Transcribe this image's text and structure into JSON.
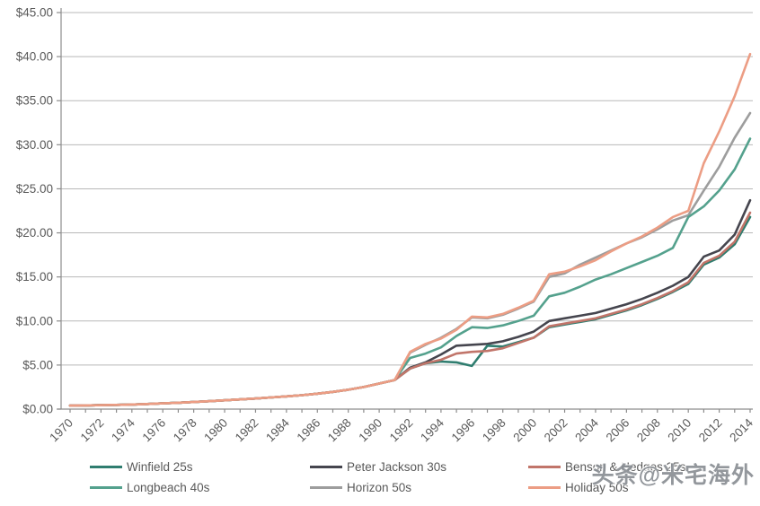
{
  "watermark": "头条@米宅海外",
  "chart_data": {
    "type": "line",
    "title": "",
    "xlabel": "",
    "ylabel": "",
    "grid": "horizontal",
    "legend_position": "bottom",
    "ylim": [
      0,
      45
    ],
    "ytick_step": 5,
    "y_tick_labels": [
      "$0.00",
      "$5.00",
      "$10.00",
      "$15.00",
      "$20.00",
      "$25.00",
      "$30.00",
      "$35.00",
      "$40.00",
      "$45.00"
    ],
    "x": [
      1970,
      1971,
      1972,
      1973,
      1974,
      1975,
      1976,
      1977,
      1978,
      1979,
      1980,
      1981,
      1982,
      1983,
      1984,
      1985,
      1986,
      1987,
      1988,
      1989,
      1990,
      1991,
      1992,
      1993,
      1994,
      1995,
      1996,
      1997,
      1998,
      1999,
      2000,
      2001,
      2002,
      2003,
      2004,
      2005,
      2006,
      2007,
      2008,
      2009,
      2010,
      2011,
      2012,
      2013,
      2014
    ],
    "x_tick_labels": [
      "1970",
      "1972",
      "1974",
      "1976",
      "1978",
      "1980",
      "1982",
      "1984",
      "1986",
      "1988",
      "1990",
      "1992",
      "1994",
      "1996",
      "1998",
      "2000",
      "2002",
      "2004",
      "2006",
      "2008",
      "2010",
      "2012",
      "2014"
    ],
    "axis_color": "#8c8c8c",
    "gridline_color": "#b8b8b8",
    "tick_label_color": "#595959",
    "draw_order": [
      1,
      4,
      0,
      3,
      2,
      5
    ],
    "series": [
      {
        "name": "Winfield 25s",
        "color": "#2f7d6f",
        "values": [
          0.4,
          0.42,
          0.45,
          0.48,
          0.52,
          0.58,
          0.65,
          0.72,
          0.8,
          0.9,
          1.0,
          1.1,
          1.2,
          1.32,
          1.45,
          1.58,
          1.75,
          1.95,
          2.2,
          2.5,
          2.9,
          3.3,
          4.6,
          5.2,
          5.4,
          5.3,
          4.9,
          7.2,
          7.1,
          7.6,
          8.1,
          9.3,
          9.6,
          9.9,
          10.2,
          10.7,
          11.2,
          11.8,
          12.5,
          13.3,
          14.2,
          16.4,
          17.2,
          18.7,
          21.8
        ]
      },
      {
        "name": "Peter Jackson 30s",
        "color": "#45454e",
        "values": [
          0.4,
          0.42,
          0.45,
          0.48,
          0.52,
          0.58,
          0.65,
          0.72,
          0.8,
          0.9,
          1.0,
          1.1,
          1.2,
          1.32,
          1.45,
          1.58,
          1.75,
          1.95,
          2.2,
          2.5,
          2.9,
          3.3,
          4.7,
          5.3,
          6.2,
          7.2,
          7.3,
          7.4,
          7.7,
          8.2,
          8.8,
          10.0,
          10.3,
          10.6,
          10.9,
          11.4,
          11.9,
          12.5,
          13.2,
          14.0,
          15.0,
          17.3,
          18.0,
          19.8,
          23.7
        ]
      },
      {
        "name": "Benson & Hedges 25s",
        "color": "#c1756a",
        "values": [
          0.4,
          0.42,
          0.45,
          0.48,
          0.52,
          0.58,
          0.65,
          0.72,
          0.8,
          0.9,
          1.0,
          1.1,
          1.2,
          1.32,
          1.45,
          1.58,
          1.75,
          1.95,
          2.2,
          2.5,
          2.9,
          3.3,
          4.6,
          5.2,
          5.6,
          6.3,
          6.5,
          6.6,
          6.9,
          7.5,
          8.1,
          9.4,
          9.7,
          10.0,
          10.3,
          10.8,
          11.3,
          11.9,
          12.6,
          13.4,
          14.4,
          16.6,
          17.4,
          19.0,
          22.3
        ]
      },
      {
        "name": "Longbeach 40s",
        "color": "#54a18d",
        "values": [
          0.4,
          0.42,
          0.45,
          0.48,
          0.52,
          0.58,
          0.65,
          0.72,
          0.8,
          0.9,
          1.0,
          1.1,
          1.2,
          1.32,
          1.45,
          1.58,
          1.75,
          1.95,
          2.2,
          2.5,
          2.9,
          3.3,
          5.8,
          6.3,
          7.0,
          8.3,
          9.3,
          9.2,
          9.5,
          10.0,
          10.6,
          12.8,
          13.2,
          13.9,
          14.7,
          15.3,
          16.0,
          16.7,
          17.4,
          18.3,
          21.8,
          23.0,
          24.8,
          27.2,
          30.7
        ]
      },
      {
        "name": "Horizon 50s",
        "color": "#9d9d9d",
        "values": [
          0.4,
          0.42,
          0.45,
          0.48,
          0.52,
          0.58,
          0.65,
          0.72,
          0.8,
          0.9,
          1.0,
          1.1,
          1.2,
          1.32,
          1.45,
          1.58,
          1.75,
          1.95,
          2.2,
          2.5,
          2.9,
          3.3,
          6.4,
          7.3,
          8.1,
          9.1,
          10.4,
          10.3,
          10.7,
          11.4,
          12.2,
          15.0,
          15.4,
          16.4,
          17.2,
          18.0,
          18.8,
          19.5,
          20.4,
          21.4,
          22.0,
          24.8,
          27.5,
          30.8,
          33.6
        ]
      },
      {
        "name": "Holiday 50s",
        "color": "#ec9d84",
        "values": [
          0.4,
          0.42,
          0.45,
          0.48,
          0.52,
          0.58,
          0.65,
          0.72,
          0.8,
          0.9,
          1.0,
          1.1,
          1.2,
          1.32,
          1.45,
          1.58,
          1.75,
          1.95,
          2.2,
          2.5,
          2.9,
          3.3,
          6.5,
          7.4,
          8.0,
          9.0,
          10.5,
          10.4,
          10.8,
          11.5,
          12.3,
          15.3,
          15.6,
          16.2,
          16.9,
          17.9,
          18.8,
          19.6,
          20.6,
          21.8,
          22.5,
          27.9,
          31.5,
          35.5,
          40.3
        ]
      }
    ]
  }
}
